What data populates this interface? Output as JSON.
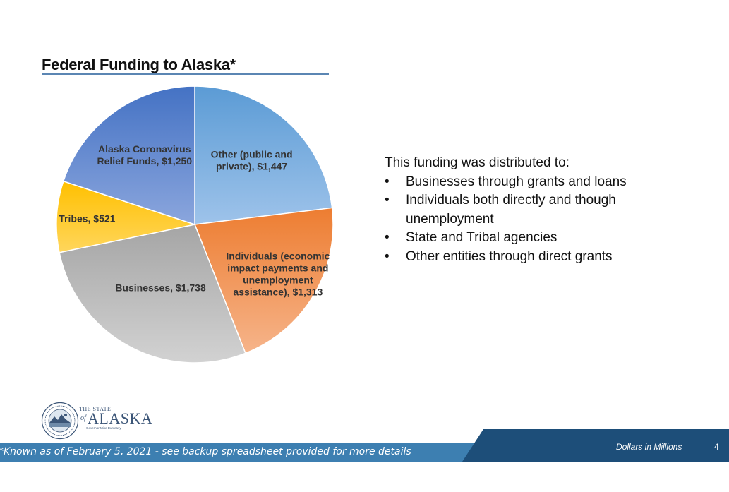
{
  "slide": {
    "title": "Federal Funding to Alaska*",
    "distribution_heading": "This funding was distributed to:",
    "distribution_items": [
      "Businesses through grants and loans",
      "Individuals both directly and though unemployment",
      "State and Tribal agencies",
      "Other entities through direct grants"
    ],
    "footnote": "*Known as of February 5, 2021 - see backup spreadsheet provided for more details",
    "units_note": "Dollars in Millions",
    "page_number": "4",
    "logo": {
      "line1": "THE STATE",
      "of": "of",
      "name": "ALASKA",
      "governor": "Governor Mike Dunleavy"
    }
  },
  "chart_data": {
    "type": "pie",
    "title": "Federal Funding to Alaska*",
    "slices": [
      {
        "lines": [
          "Other (public and",
          "private),  $1,447"
        ],
        "value": 1447,
        "color": "#5b9bd5",
        "color_light": "#9ec3ea"
      },
      {
        "lines": [
          "Individuals (economic",
          "impact payments and",
          "unemployment",
          "assistance),  $1,313"
        ],
        "value": 1313,
        "color": "#ed7d31",
        "color_light": "#f6b48a"
      },
      {
        "lines": [
          "Businesses,  $1,738"
        ],
        "value": 1738,
        "color": "#a5a5a5",
        "color_light": "#d2d2d2"
      },
      {
        "lines": [
          "Tribes,  $521"
        ],
        "value": 521,
        "color": "#ffc000",
        "color_light": "#ffd65c"
      },
      {
        "lines": [
          "Alaska Coronavirus",
          "Relief Funds,  $1,250"
        ],
        "value": 1250,
        "color": "#4472c4",
        "color_light": "#8ba6dd"
      }
    ],
    "start_angle_deg": 0,
    "direction": "clockwise",
    "legend": "none"
  }
}
